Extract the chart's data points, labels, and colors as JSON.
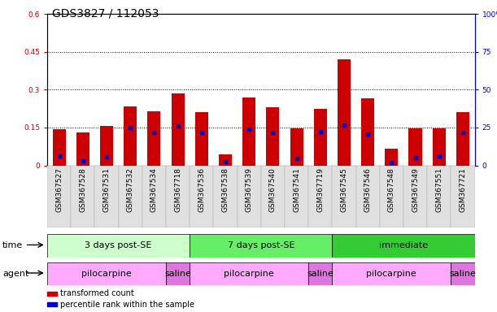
{
  "title": "GDS3827 / 112053",
  "samples": [
    "GSM367527",
    "GSM367528",
    "GSM367531",
    "GSM367532",
    "GSM367534",
    "GSM367718",
    "GSM367536",
    "GSM367538",
    "GSM367539",
    "GSM367540",
    "GSM367541",
    "GSM367719",
    "GSM367545",
    "GSM367546",
    "GSM367548",
    "GSM367549",
    "GSM367551",
    "GSM367721"
  ],
  "red_values": [
    0.145,
    0.13,
    0.155,
    0.235,
    0.215,
    0.285,
    0.21,
    0.045,
    0.27,
    0.23,
    0.148,
    0.225,
    0.42,
    0.265,
    0.065,
    0.148,
    0.148,
    0.21
  ],
  "blue_values": [
    0.038,
    0.018,
    0.035,
    0.15,
    0.13,
    0.155,
    0.13,
    0.015,
    0.145,
    0.13,
    0.028,
    0.135,
    0.16,
    0.125,
    0.01,
    0.03,
    0.038,
    0.13
  ],
  "ylim_left": [
    0,
    0.6
  ],
  "ylim_right": [
    0,
    100
  ],
  "yticks_left": [
    0,
    0.15,
    0.3,
    0.45,
    0.6
  ],
  "ytick_labels_left": [
    "0",
    "0.15",
    "0.3",
    "0.45",
    "0.6"
  ],
  "yticks_right": [
    0,
    25,
    50,
    75,
    100
  ],
  "ytick_labels_right": [
    "0",
    "25",
    "50",
    "75",
    "100%"
  ],
  "grid_vals": [
    0.15,
    0.3,
    0.45
  ],
  "time_groups": [
    {
      "label": "3 days post-SE",
      "start": 0,
      "end": 6,
      "color": "#ccffcc"
    },
    {
      "label": "7 days post-SE",
      "start": 6,
      "end": 12,
      "color": "#66ee66"
    },
    {
      "label": "immediate",
      "start": 12,
      "end": 18,
      "color": "#33cc33"
    }
  ],
  "agent_groups": [
    {
      "label": "pilocarpine",
      "start": 0,
      "end": 5,
      "color": "#ffaaff"
    },
    {
      "label": "saline",
      "start": 5,
      "end": 6,
      "color": "#dd77dd"
    },
    {
      "label": "pilocarpine",
      "start": 6,
      "end": 11,
      "color": "#ffaaff"
    },
    {
      "label": "saline",
      "start": 11,
      "end": 12,
      "color": "#dd77dd"
    },
    {
      "label": "pilocarpine",
      "start": 12,
      "end": 17,
      "color": "#ffaaff"
    },
    {
      "label": "saline",
      "start": 17,
      "end": 18,
      "color": "#dd77dd"
    }
  ],
  "legend_items": [
    {
      "label": "transformed count",
      "color": "#cc0000"
    },
    {
      "label": "percentile rank within the sample",
      "color": "#0000cc"
    }
  ],
  "bar_color": "#cc0000",
  "dot_color": "#0000cc",
  "bar_width": 0.55,
  "background_color": "#ffffff",
  "time_label": "time",
  "agent_label": "agent",
  "title_fontsize": 10,
  "tick_fontsize": 6.5,
  "annotation_fontsize": 8
}
